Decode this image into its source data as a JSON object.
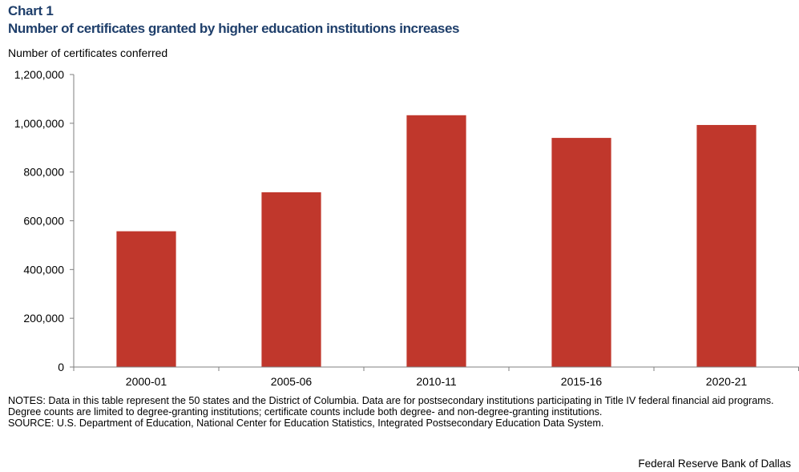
{
  "header": {
    "chart_label": "Chart 1",
    "title": "Number of certificates granted by higher education institutions increases"
  },
  "chart_data": {
    "type": "bar",
    "title": "Number of certificates granted by higher education institutions increases",
    "ylabel": "Number of certificates conferred",
    "xlabel": "",
    "categories": [
      "2000-01",
      "2005-06",
      "2010-11",
      "2015-16",
      "2020-21"
    ],
    "values": [
      557000,
      717000,
      1033000,
      940000,
      993000
    ],
    "ylim": [
      0,
      1200000
    ],
    "yticks": [
      0,
      200000,
      400000,
      600000,
      800000,
      1000000,
      1200000
    ],
    "ytick_labels": [
      "0",
      "200,000",
      "400,000",
      "600,000",
      "800,000",
      "1,000,000",
      "1,200,000"
    ],
    "bar_color": "#c0372c",
    "grid": false,
    "legend": "none"
  },
  "footer": {
    "notes": "NOTES: Data in this table represent the 50 states and the District of Columbia. Data are for postsecondary institutions participating in Title IV federal financial aid programs. Degree counts are limited to degree-granting institutions; certificate counts include both degree- and non-degree-granting institutions.",
    "source": "SOURCE: U.S. Department of Education, National Center for Education Statistics, Integrated Postsecondary Education Data System.",
    "credit": "Federal Reserve Bank of Dallas"
  }
}
